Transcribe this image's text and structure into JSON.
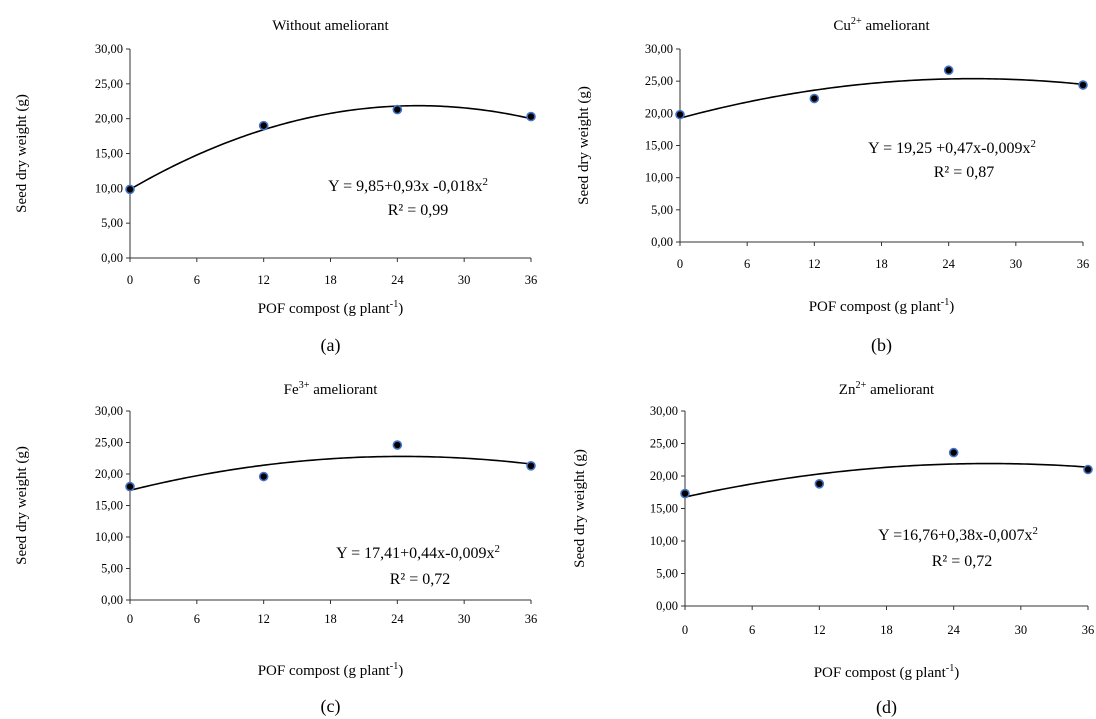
{
  "chart_data": [
    {
      "type": "scatter",
      "panel_label": "(a)",
      "title": {
        "base": "Without ameliorant",
        "sup": "",
        "rest": ""
      },
      "ylabel": "Seed dry weight (g)",
      "xlabel": {
        "base": "POF compost (g plant",
        "sup": "-1",
        "rest": ")"
      },
      "xlim": [
        0,
        36
      ],
      "ylim": [
        0,
        30
      ],
      "xticks": [
        "0",
        "6",
        "12",
        "18",
        "24",
        "30",
        "36"
      ],
      "yticks": [
        "0,00",
        "5,00",
        "10,00",
        "15,00",
        "20,00",
        "25,00",
        "30,00"
      ],
      "grid": false,
      "legend": "none",
      "series": [
        {
          "x": [
            0,
            12,
            24,
            36
          ],
          "values": [
            9.85,
            19.0,
            21.3,
            20.3
          ]
        }
      ],
      "fit": {
        "a": 9.85,
        "b": 0.93,
        "c": -0.018
      },
      "equation": {
        "base": "Y = 9,85+0,93x -0,018x",
        "sup": "2"
      },
      "r2": "R² = 0,99",
      "colors": {
        "marker": "#000000",
        "marker_edge": "#4472c4",
        "line": "#000000"
      }
    },
    {
      "type": "scatter",
      "panel_label": "(b)",
      "title": {
        "base": "Cu",
        "sup": "2+",
        "rest": " ameliorant"
      },
      "ylabel": "Seed dry weight (g)",
      "xlabel": {
        "base": "POF compost (g plant",
        "sup": "-1",
        "rest": ")"
      },
      "xlim": [
        0,
        36
      ],
      "ylim": [
        0,
        30
      ],
      "xticks": [
        "0",
        "6",
        "12",
        "18",
        "24",
        "30",
        "36"
      ],
      "yticks": [
        "0,00",
        "5,00",
        "10,00",
        "15,00",
        "20,00",
        "25,00",
        "30,00"
      ],
      "grid": false,
      "legend": "none",
      "series": [
        {
          "x": [
            0,
            12,
            24,
            36
          ],
          "values": [
            19.8,
            22.3,
            26.7,
            24.4
          ]
        }
      ],
      "fit": {
        "a": 19.25,
        "b": 0.47,
        "c": -0.009
      },
      "equation": {
        "base": "Y = 19,25 +0,47x-0,009x",
        "sup": "2"
      },
      "r2": "R² = 0,87",
      "colors": {
        "marker": "#000000",
        "marker_edge": "#4472c4",
        "line": "#000000"
      }
    },
    {
      "type": "scatter",
      "panel_label": "(c)",
      "title": {
        "base": "Fe",
        "sup": "3+",
        "rest": " ameliorant"
      },
      "ylabel": "Seed dry weight (g)",
      "xlabel": {
        "base": "POF compost  (g plant",
        "sup": "-1",
        "rest": ")"
      },
      "xlim": [
        0,
        36
      ],
      "ylim": [
        0,
        30
      ],
      "xticks": [
        "0",
        "6",
        "12",
        "18",
        "24",
        "30",
        "36"
      ],
      "yticks": [
        "0,00",
        "5,00",
        "10,00",
        "15,00",
        "20,00",
        "25,00",
        "30,00"
      ],
      "grid": false,
      "legend": "none",
      "series": [
        {
          "x": [
            0,
            12,
            24,
            36
          ],
          "values": [
            18.0,
            19.6,
            24.6,
            21.3
          ]
        }
      ],
      "fit": {
        "a": 17.41,
        "b": 0.44,
        "c": -0.009
      },
      "equation": {
        "base": "Y = 17,41+0,44x-0,009x",
        "sup": "2"
      },
      "r2": "R² = 0,72",
      "colors": {
        "marker": "#000000",
        "marker_edge": "#4472c4",
        "line": "#000000"
      }
    },
    {
      "type": "scatter",
      "panel_label": "(d)",
      "title": {
        "base": "Zn",
        "sup": "2+",
        "rest": " ameliorant"
      },
      "ylabel": "Seed dry weight (g)",
      "xlabel": {
        "base": "POF  compost  (g plant",
        "sup": "-1",
        "rest": ")"
      },
      "xlim": [
        0,
        36
      ],
      "ylim": [
        0,
        30
      ],
      "xticks": [
        "0",
        "6",
        "12",
        "18",
        "24",
        "30",
        "36"
      ],
      "yticks": [
        "0,00",
        "5,00",
        "10,00",
        "15,00",
        "20,00",
        "25,00",
        "30,00"
      ],
      "grid": false,
      "legend": "none",
      "series": [
        {
          "x": [
            0,
            12,
            24,
            36
          ],
          "values": [
            17.3,
            18.8,
            23.6,
            21.0
          ]
        }
      ],
      "fit": {
        "a": 16.76,
        "b": 0.38,
        "c": -0.007
      },
      "equation": {
        "base": "Y =16,76+0,38x-0,007x",
        "sup": "2"
      },
      "r2": "R² = 0,72",
      "colors": {
        "marker": "#000000",
        "marker_edge": "#4472c4",
        "line": "#000000"
      }
    }
  ]
}
